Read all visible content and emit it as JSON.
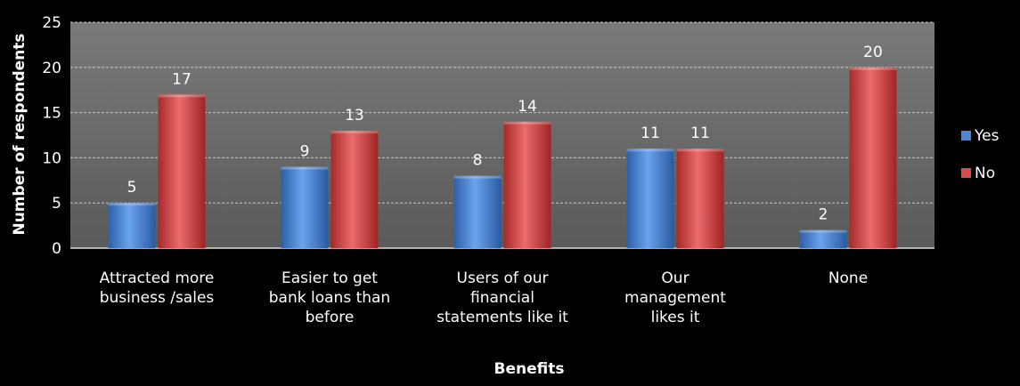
{
  "chart_data": {
    "type": "bar",
    "title": "",
    "xlabel": "Benefits",
    "ylabel": "Number of respondents",
    "ylim": [
      0,
      25
    ],
    "yticks": [
      0,
      5,
      10,
      15,
      20,
      25
    ],
    "grid": true,
    "legend_position": "right",
    "categories": [
      [
        "Attracted more",
        "business /sales"
      ],
      [
        "Easier to get",
        "bank loans than",
        "before"
      ],
      [
        "Users of our",
        "financial",
        "statements like it"
      ],
      [
        "Our",
        "management",
        "likes it"
      ],
      [
        "None"
      ]
    ],
    "series": [
      {
        "name": "Yes",
        "color": "#4a86d8",
        "values": [
          5,
          9,
          8,
          11,
          2
        ]
      },
      {
        "name": "No",
        "color": "#d84b4b",
        "values": [
          17,
          13,
          14,
          11,
          20
        ]
      }
    ]
  }
}
